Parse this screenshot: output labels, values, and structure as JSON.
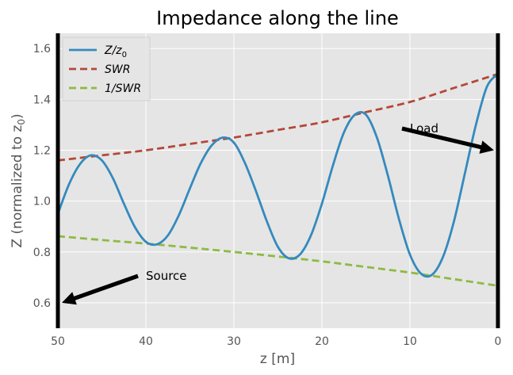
{
  "chart_data": {
    "type": "line",
    "title": "Impedance along the line",
    "xlabel": "z [m]",
    "ylabel": "Z (normalized to z0)",
    "xlim": [
      50,
      0
    ],
    "ylim": [
      0.5,
      1.66
    ],
    "x_ticks": [
      50,
      40,
      30,
      20,
      10,
      0
    ],
    "y_ticks": [
      0.6,
      0.8,
      1.0,
      1.2,
      1.4,
      1.6
    ],
    "grid": true,
    "legend_position": "top-left",
    "background": "#e5e5e5",
    "series": [
      {
        "name": "Z/z0",
        "legend_main": "Z/z",
        "legend_sub": "0",
        "style": "solid",
        "color": "#348abd",
        "x": [
          50,
          48.75,
          47.5,
          46.25,
          45,
          43.75,
          42.5,
          41.25,
          40,
          38.75,
          37.5,
          36.25,
          35,
          33.75,
          32.5,
          31.25,
          30,
          28.75,
          27.5,
          26.25,
          25,
          23.75,
          22.5,
          21.25,
          20,
          18.75,
          17.5,
          16.25,
          15,
          13.75,
          12.5,
          11.25,
          10,
          8.75,
          7.5,
          6.25,
          5,
          3.75,
          2.5,
          1.25,
          0
        ],
        "y": [
          0.95,
          1.065,
          1.145,
          1.18,
          1.16,
          1.09,
          0.99,
          0.898,
          0.84,
          0.83,
          0.865,
          0.945,
          1.05,
          1.15,
          1.22,
          1.25,
          1.23,
          1.15,
          1.04,
          0.92,
          0.82,
          0.775,
          0.79,
          0.865,
          0.99,
          1.14,
          1.27,
          1.34,
          1.34,
          1.25,
          1.1,
          0.93,
          0.79,
          0.715,
          0.71,
          0.78,
          0.92,
          1.11,
          1.3,
          1.45,
          1.5
        ]
      },
      {
        "name": "SWR",
        "style": "dashed",
        "color": "#b5473a",
        "x": [
          50,
          45,
          40,
          35,
          30,
          25,
          20,
          15,
          10,
          5,
          0
        ],
        "y": [
          1.16,
          1.18,
          1.2,
          1.225,
          1.25,
          1.28,
          1.31,
          1.35,
          1.39,
          1.445,
          1.5
        ]
      },
      {
        "name": "1/SWR",
        "style": "dashed",
        "color": "#8eba42",
        "x": [
          50,
          45,
          40,
          35,
          30,
          25,
          20,
          15,
          10,
          5,
          0
        ],
        "y": [
          0.862,
          0.847,
          0.833,
          0.817,
          0.8,
          0.782,
          0.763,
          0.741,
          0.719,
          0.693,
          0.667
        ]
      }
    ],
    "vertical_lines": [
      50,
      0
    ],
    "annotations": [
      {
        "text": "Source",
        "text_x": 40,
        "text_y": 0.69,
        "arrow_to_x": 50,
        "arrow_to_y": 0.6
      },
      {
        "text": "Load",
        "text_x": 10,
        "text_y": 1.27,
        "arrow_to_x": 0,
        "arrow_to_y": 1.2
      }
    ]
  }
}
